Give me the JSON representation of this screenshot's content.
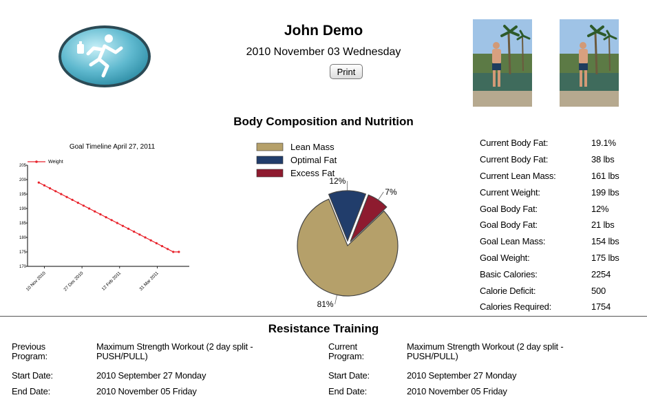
{
  "header": {
    "user_name": "John Demo",
    "date": "2010 November 03 Wednesday",
    "print_label": "Print"
  },
  "body_composition": {
    "title": "Body Composition and Nutrition"
  },
  "timeline_chart": {
    "type": "line",
    "title": "Goal Timeline April 27, 2011",
    "legend": "Weight",
    "legend_placement": "top-left",
    "x_ticks": [
      "10 Nov 2010",
      "27 Dec 2010",
      "12 Feb 2011",
      "31 Mar 2011"
    ],
    "x_tick_dates": [
      "2010-11-10",
      "2010-12-27",
      "2011-02-12",
      "2011-03-31"
    ],
    "x_range": [
      "2010-10-20",
      "2011-05-10"
    ],
    "x": [
      "2010-11-03",
      "2010-11-10",
      "2010-11-17",
      "2010-11-24",
      "2010-12-01",
      "2010-12-08",
      "2010-12-15",
      "2010-12-22",
      "2010-12-29",
      "2011-01-05",
      "2011-01-12",
      "2011-01-19",
      "2011-01-26",
      "2011-02-02",
      "2011-02-09",
      "2011-02-16",
      "2011-02-23",
      "2011-03-02",
      "2011-03-09",
      "2011-03-16",
      "2011-03-23",
      "2011-03-30",
      "2011-04-06",
      "2011-04-13",
      "2011-04-20",
      "2011-04-27"
    ],
    "y": [
      199,
      198,
      197,
      196,
      195,
      194,
      193,
      192,
      191,
      190,
      189,
      188,
      187,
      186,
      185,
      184,
      183,
      182,
      181,
      180,
      179,
      178,
      177,
      176,
      175,
      175
    ],
    "y_ticks": [
      205,
      200,
      195,
      190,
      185,
      180,
      175,
      170
    ],
    "ylim": [
      170,
      205
    ],
    "color": "#e8212a"
  },
  "chart_data": {
    "type": "pie",
    "labels": [
      "Lean Mass",
      "Optimal Fat",
      "Excess Fat"
    ],
    "values": [
      81,
      12,
      7
    ],
    "value_labels": [
      "81%",
      "12%",
      "7%"
    ],
    "colors": [
      "#b5a06a",
      "#213d6b",
      "#8e1b2f"
    ],
    "legend_placement": "top"
  },
  "stats": [
    {
      "label": "Current Body Fat:",
      "value": "19.1%"
    },
    {
      "label": "Current Body Fat:",
      "value": "38 lbs"
    },
    {
      "label": "Current Lean Mass:",
      "value": "161 lbs"
    },
    {
      "label": "Current Weight:",
      "value": "199 lbs"
    },
    {
      "label": "Goal Body Fat:",
      "value": "12%"
    },
    {
      "label": "Goal Body Fat:",
      "value": "21 lbs"
    },
    {
      "label": "Goal Lean Mass:",
      "value": "154 lbs"
    },
    {
      "label": "Goal Weight:",
      "value": "175 lbs"
    },
    {
      "label": "Basic Calories:",
      "value": "2254"
    },
    {
      "label": "Calorie Deficit:",
      "value": "500"
    },
    {
      "label": "Calories Required:",
      "value": "1754"
    }
  ],
  "resistance": {
    "title": "Resistance Training",
    "previous": {
      "program_label": "Previous Program:",
      "program_value": "Maximum Strength Workout (2 day split - PUSH/PULL)",
      "start_label": "Start Date:",
      "start_value": "2010 September 27 Monday",
      "end_label": "End Date:",
      "end_value": "2010 November 05 Friday"
    },
    "current": {
      "program_label": "Current Program:",
      "program_value": "Maximum Strength Workout (2 day split - PUSH/PULL)",
      "start_label": "Start Date:",
      "start_value": "2010 September 27 Monday",
      "end_label": "End Date:",
      "end_value": "2010 November 05 Friday"
    }
  },
  "icons": {
    "logo": "runner-logo-icon",
    "photos": [
      "progress-photo-before",
      "progress-photo-current"
    ]
  }
}
